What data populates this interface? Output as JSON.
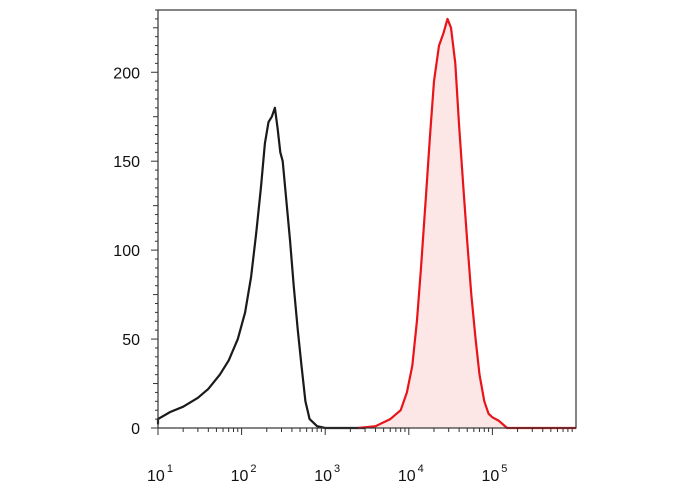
{
  "chart_data": {
    "type": "area",
    "x_scale": "log",
    "xlim": [
      10,
      1000000
    ],
    "ylim": [
      0,
      235
    ],
    "x_ticks": [
      {
        "value": 10,
        "base": "10",
        "exp": "1"
      },
      {
        "value": 100,
        "base": "10",
        "exp": "2"
      },
      {
        "value": 1000,
        "base": "10",
        "exp": "3"
      },
      {
        "value": 10000,
        "base": "10",
        "exp": "4"
      },
      {
        "value": 100000,
        "base": "10",
        "exp": "5"
      }
    ],
    "y_ticks": [
      {
        "value": 0,
        "label": "0"
      },
      {
        "value": 50,
        "label": "50"
      },
      {
        "value": 100,
        "label": "100"
      },
      {
        "value": 150,
        "label": "150"
      },
      {
        "value": 200,
        "label": "200"
      }
    ],
    "grid": false,
    "series": [
      {
        "color": "#1a1a1a",
        "fill": "none",
        "x": [
          7,
          10,
          14,
          20,
          30,
          40,
          55,
          70,
          90,
          110,
          130,
          150,
          170,
          190,
          210,
          230,
          250,
          270,
          290,
          310,
          340,
          380,
          420,
          470,
          520,
          580,
          650,
          800,
          1000,
          1500,
          3000
        ],
        "y": [
          2,
          5,
          9,
          12,
          17,
          22,
          30,
          38,
          50,
          65,
          85,
          110,
          135,
          160,
          172,
          175,
          180,
          168,
          155,
          150,
          130,
          105,
          80,
          55,
          35,
          15,
          5,
          1,
          0,
          0,
          0
        ]
      },
      {
        "color": "#e8141a",
        "fill": "#fde6e6",
        "x": [
          2500,
          4000,
          6000,
          8000,
          9500,
          11000,
          12500,
          14000,
          16000,
          18000,
          20000,
          23000,
          26000,
          29000,
          32000,
          36000,
          40000,
          45000,
          50000,
          56000,
          63000,
          70000,
          80000,
          90000,
          100000,
          120000,
          150000,
          200000,
          300000,
          1000000
        ],
        "y": [
          0,
          1,
          5,
          10,
          20,
          35,
          60,
          90,
          130,
          165,
          195,
          215,
          222,
          230,
          225,
          205,
          170,
          135,
          105,
          75,
          50,
          30,
          15,
          8,
          6,
          4,
          0,
          0,
          0,
          0
        ]
      }
    ]
  }
}
